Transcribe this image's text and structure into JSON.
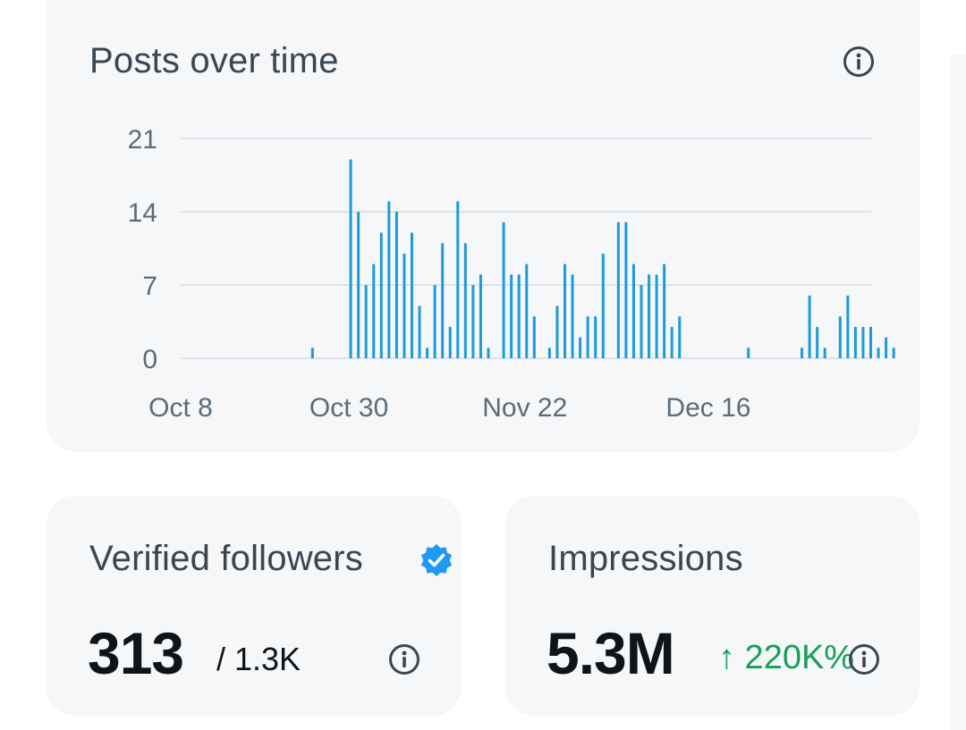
{
  "chart_card": {
    "title": "Posts over time"
  },
  "chart_data": {
    "type": "bar",
    "title": "Posts over time",
    "x_tick_labels": [
      "Oct 8",
      "Oct 30",
      "Nov 22",
      "Dec 16"
    ],
    "y_ticks": [
      0,
      7,
      14,
      21
    ],
    "ylim": [
      0,
      21
    ],
    "grid": true,
    "color": "#1d9bd9",
    "x_start": "Oct 8",
    "x_end": "Jan 1",
    "series": [
      {
        "values": [
          {
            "x": "Oct 25",
            "y": 1
          },
          {
            "x": "Oct 30",
            "y": 19
          },
          {
            "x": "Oct 31",
            "y": 14
          },
          {
            "x": "Nov 1",
            "y": 7
          },
          {
            "x": "Nov 2",
            "y": 9
          },
          {
            "x": "Nov 3",
            "y": 12
          },
          {
            "x": "Nov 4",
            "y": 15
          },
          {
            "x": "Nov 5",
            "y": 14
          },
          {
            "x": "Nov 6",
            "y": 10
          },
          {
            "x": "Nov 7",
            "y": 12
          },
          {
            "x": "Nov 8",
            "y": 5
          },
          {
            "x": "Nov 9",
            "y": 1
          },
          {
            "x": "Nov 10",
            "y": 7
          },
          {
            "x": "Nov 11",
            "y": 11
          },
          {
            "x": "Nov 12",
            "y": 3
          },
          {
            "x": "Nov 13",
            "y": 15
          },
          {
            "x": "Nov 14",
            "y": 11
          },
          {
            "x": "Nov 15",
            "y": 7
          },
          {
            "x": "Nov 16",
            "y": 8
          },
          {
            "x": "Nov 17",
            "y": 1
          },
          {
            "x": "Nov 19",
            "y": 13
          },
          {
            "x": "Nov 20",
            "y": 8
          },
          {
            "x": "Nov 21",
            "y": 8
          },
          {
            "x": "Nov 22",
            "y": 9
          },
          {
            "x": "Nov 23",
            "y": 4
          },
          {
            "x": "Nov 25",
            "y": 1
          },
          {
            "x": "Nov 26",
            "y": 5
          },
          {
            "x": "Nov 27",
            "y": 9
          },
          {
            "x": "Nov 28",
            "y": 8
          },
          {
            "x": "Nov 29",
            "y": 2
          },
          {
            "x": "Nov 30",
            "y": 4
          },
          {
            "x": "Dec 1",
            "y": 4
          },
          {
            "x": "Dec 2",
            "y": 10
          },
          {
            "x": "Dec 4",
            "y": 13
          },
          {
            "x": "Dec 5",
            "y": 13
          },
          {
            "x": "Dec 6",
            "y": 9
          },
          {
            "x": "Dec 7",
            "y": 7
          },
          {
            "x": "Dec 8",
            "y": 8
          },
          {
            "x": "Dec 9",
            "y": 8
          },
          {
            "x": "Dec 10",
            "y": 9
          },
          {
            "x": "Dec 11",
            "y": 3
          },
          {
            "x": "Dec 12",
            "y": 4
          },
          {
            "x": "Dec 21",
            "y": 1
          },
          {
            "x": "Dec 28",
            "y": 1
          },
          {
            "x": "Dec 29",
            "y": 6
          },
          {
            "x": "Dec 30",
            "y": 3
          },
          {
            "x": "Dec 31",
            "y": 1
          },
          {
            "x": "Jan 2",
            "y": 4
          },
          {
            "x": "Jan 3",
            "y": 6
          },
          {
            "x": "Jan 4",
            "y": 3
          },
          {
            "x": "Jan 5",
            "y": 3
          },
          {
            "x": "Jan 6",
            "y": 3
          },
          {
            "x": "Jan 7",
            "y": 1
          },
          {
            "x": "Jan 8",
            "y": 2
          },
          {
            "x": "Jan 9",
            "y": 1
          }
        ]
      }
    ]
  },
  "verified_card": {
    "title": "Verified followers",
    "value": "313",
    "total": "/ 1.3K",
    "badge_icon": "verified-badge-icon",
    "badge_color": "#1d9bf0"
  },
  "impressions_card": {
    "title": "Impressions",
    "value": "5.3M",
    "delta": "↑ 220K%",
    "delta_color": "#15a05a"
  },
  "icons": {
    "info": "info-icon"
  }
}
